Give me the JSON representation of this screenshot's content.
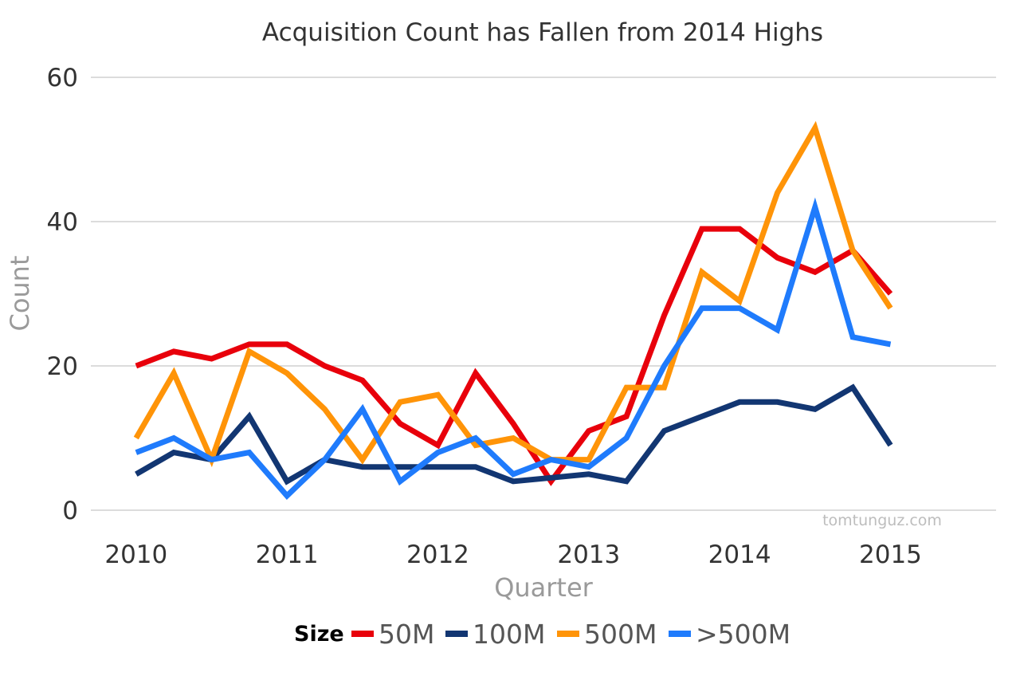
{
  "chart_data": {
    "type": "line",
    "title": "Acquisition Count has Fallen from 2014 Highs",
    "xlabel": "Quarter",
    "ylabel": "Count",
    "x": [
      2010,
      2010.25,
      2010.5,
      2010.75,
      2011,
      2011.25,
      2011.5,
      2011.75,
      2012,
      2012.25,
      2012.5,
      2012.75,
      2013,
      2013.25,
      2013.5,
      2013.75,
      2014,
      2014.25,
      2014.5,
      2014.75,
      2015
    ],
    "xlim": [
      2009.7,
      2015.7
    ],
    "ylim": [
      0,
      60
    ],
    "x_ticks": [
      2010,
      2011,
      2012,
      2013,
      2014,
      2015
    ],
    "x_tick_labels": [
      "2010",
      "2011",
      "2012",
      "2013",
      "2014",
      "2015"
    ],
    "y_ticks": [
      0,
      20,
      40,
      60
    ],
    "y_tick_labels": [
      "0",
      "20",
      "40",
      "60"
    ],
    "grid": "horizontal",
    "legend": {
      "title": "Size",
      "position": "bottom"
    },
    "watermark": "tomtunguz.com",
    "series": [
      {
        "name": "50M",
        "color": "#e8000b",
        "values": [
          20,
          22,
          21,
          23,
          23,
          20,
          18,
          12,
          9,
          19,
          12,
          4,
          11,
          13,
          27,
          39,
          39,
          35,
          33,
          36,
          30
        ]
      },
      {
        "name": "100M",
        "color": "#123672",
        "values": [
          5,
          8,
          7,
          13,
          4,
          7,
          6,
          6,
          6,
          6,
          4,
          4.5,
          5,
          4,
          11,
          13,
          15,
          15,
          14,
          17,
          9
        ]
      },
      {
        "name": "500M",
        "color": "#ff9408",
        "values": [
          10,
          19,
          7,
          22,
          19,
          14,
          7,
          15,
          16,
          9,
          10,
          7,
          7,
          17,
          17,
          33,
          29,
          44,
          53,
          36,
          28
        ]
      },
      {
        "name": ">500M",
        "color": "#1f7bfc",
        "values": [
          8,
          10,
          7,
          8,
          2,
          7,
          14,
          4,
          8,
          10,
          5,
          7,
          6,
          10,
          20,
          28,
          28,
          25,
          42,
          24,
          23
        ]
      }
    ]
  }
}
